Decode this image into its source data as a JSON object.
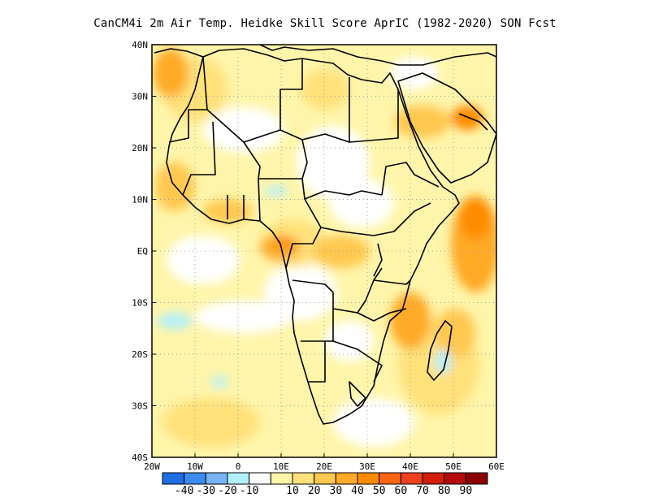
{
  "title": "CanCM4i  2m Air Temp. Heidke Skill Score AprIC (1982-2020) SON Fcst",
  "map": {
    "lon_range": [
      -20,
      60
    ],
    "lat_range": [
      -40,
      40
    ],
    "lat_ticks": [
      {
        "value": 40,
        "label": "40N"
      },
      {
        "value": 30,
        "label": "30N"
      },
      {
        "value": 20,
        "label": "20N"
      },
      {
        "value": 10,
        "label": "10N"
      },
      {
        "value": 0,
        "label": "EQ"
      },
      {
        "value": -10,
        "label": "10S"
      },
      {
        "value": -20,
        "label": "20S"
      },
      {
        "value": -30,
        "label": "30S"
      },
      {
        "value": -40,
        "label": "40S"
      }
    ],
    "lon_ticks": [
      {
        "value": -20,
        "label": "20W"
      },
      {
        "value": -10,
        "label": "10W"
      },
      {
        "value": 0,
        "label": "0"
      },
      {
        "value": 10,
        "label": "10E"
      },
      {
        "value": 20,
        "label": "20E"
      },
      {
        "value": 30,
        "label": "30E"
      },
      {
        "value": 40,
        "label": "40E"
      },
      {
        "value": 50,
        "label": "50E"
      },
      {
        "value": 60,
        "label": "60E"
      }
    ],
    "gridlines": "dotted"
  },
  "colorbar": {
    "colors": [
      "#1e6fe6",
      "#3c8cf0",
      "#78b4f5",
      "#b4f0fa",
      "#ffffff",
      "#fff5aa",
      "#ffe17a",
      "#ffc850",
      "#ffaa28",
      "#ff8c00",
      "#ff6414",
      "#f0411e",
      "#d21e0a",
      "#b40a0a",
      "#8c0000"
    ],
    "labels": [
      "-40",
      "-30",
      "-20",
      "-10",
      "10",
      "20",
      "30",
      "40",
      "50",
      "60",
      "70",
      "80",
      "90"
    ]
  }
}
